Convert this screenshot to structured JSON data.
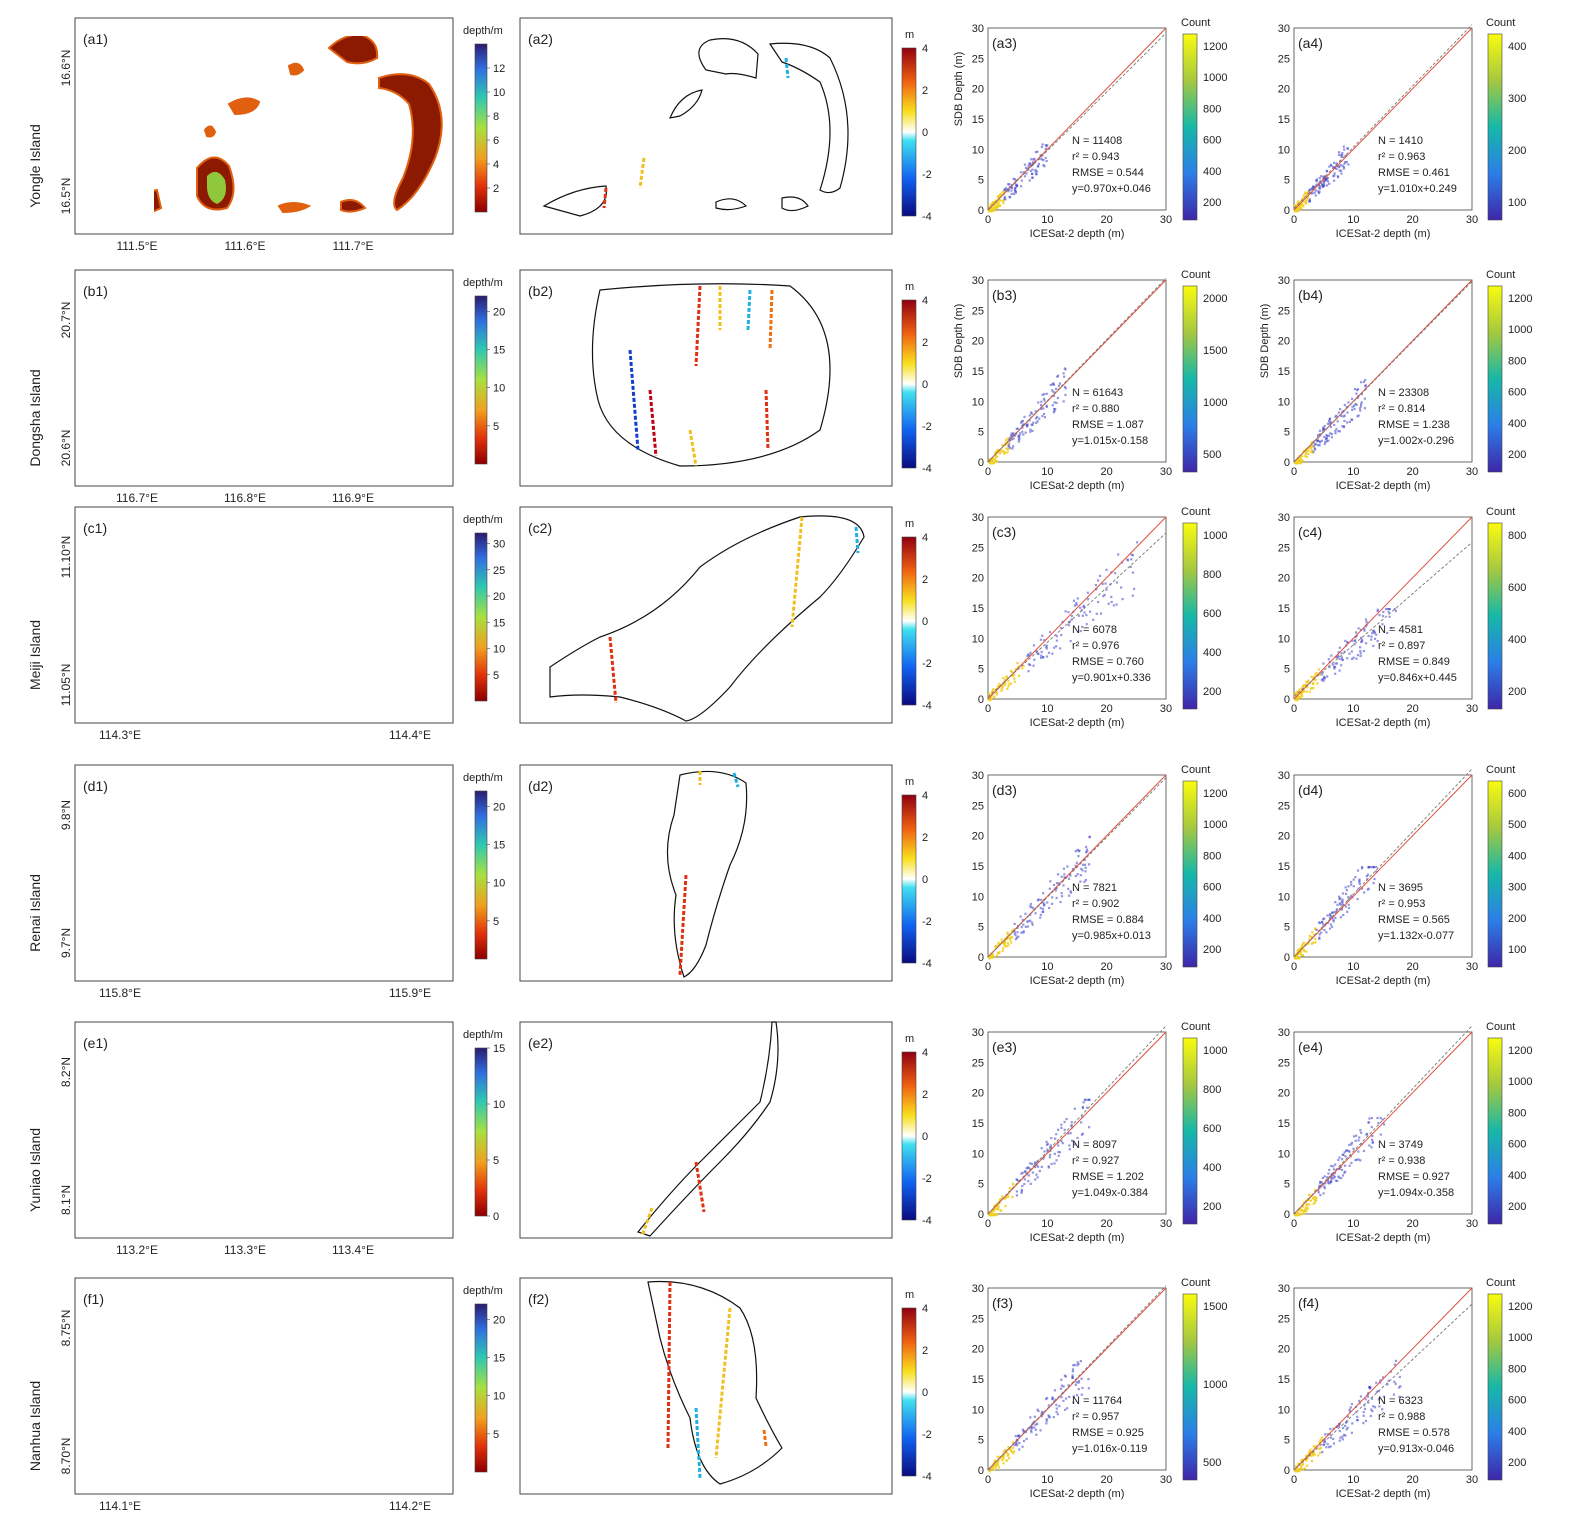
{
  "colors": {
    "bg": "#ffffff",
    "axis": "#444444",
    "outline": "#111111",
    "one_to_one": "#e05040",
    "fit_line": "#777777",
    "point_dense": "#f0d020",
    "point_sparse": "#3a40c8",
    "land_shallow": "#8b1a00",
    "land_mid": "#e06010",
    "lagoon": "#8fd840"
  },
  "labels": {
    "depth_cbar": "depth/m",
    "diff_cbar": "m",
    "count_cbar": "Count",
    "x_axis": "ICESat-2 depth (m)",
    "y_axis": "SDB Depth (m)",
    "diff_ticks": [
      "4",
      "2",
      "0",
      "-2",
      "-4"
    ],
    "scatter_ticks": [
      "0",
      "5",
      "10",
      "15",
      "20",
      "25",
      "30"
    ],
    "scatter_xticks": [
      "0",
      "10",
      "20",
      "30"
    ]
  },
  "rows": [
    {
      "island": "Yongle Island",
      "panels": [
        "(a1)",
        "(a2)",
        "(a3)",
        "(a4)"
      ],
      "lat_ticks": [
        "16.6°N",
        "16.5°N"
      ],
      "lon_ticks": [
        "111.5°E",
        "111.6°E",
        "111.7°E"
      ],
      "depth_ticks": [
        "12",
        "10",
        "8",
        "6",
        "4",
        "2"
      ],
      "depth_max": 14,
      "count3_ticks": [
        "1200",
        "1000",
        "800",
        "600",
        "400",
        "200"
      ],
      "count4_ticks": [
        "400",
        "300",
        "200",
        "100"
      ],
      "ylabel3": "SDB Depth (m)",
      "ylabel4": "",
      "stats3": [
        "N = 11408",
        "r² = 0.943",
        "RMSE = 0.544",
        "y=0.970x+0.046"
      ],
      "stats4": [
        "N = 1410",
        "r² = 0.963",
        "RMSE = 0.461",
        "y=1.010x+0.249"
      ]
    },
    {
      "island": "Dongsha Island",
      "panels": [
        "(b1)",
        "(b2)",
        "(b3)",
        "(b4)"
      ],
      "lat_ticks": [
        "20.7°N",
        "20.6°N"
      ],
      "lon_ticks": [
        "116.7°E",
        "116.8°E",
        "116.9°E"
      ],
      "depth_ticks": [
        "20",
        "15",
        "10",
        "5"
      ],
      "depth_max": 22,
      "count3_ticks": [
        "2000",
        "1500",
        "1000",
        "500"
      ],
      "count4_ticks": [
        "1200",
        "1000",
        "800",
        "600",
        "400",
        "200"
      ],
      "ylabel3": "SDB Depth (m)",
      "ylabel4": "SDB Depth (m)",
      "stats3": [
        "N = 61643",
        "r² = 0.880",
        "RMSE = 1.087",
        "y=1.015x-0.158"
      ],
      "stats4": [
        "N = 23308",
        "r² = 0.814",
        "RMSE = 1.238",
        "y=1.002x-0.296"
      ]
    },
    {
      "island": "Meiji Island",
      "panels": [
        "(c1)",
        "(c2)",
        "(c3)",
        "(c4)"
      ],
      "lat_ticks": [
        "11.10°N",
        "11.05°N"
      ],
      "lon_ticks": [
        "114.3°E",
        "114.4°E"
      ],
      "depth_ticks": [
        "30",
        "25",
        "20",
        "15",
        "10",
        "5"
      ],
      "depth_max": 32,
      "count3_ticks": [
        "1000",
        "800",
        "600",
        "400",
        "200"
      ],
      "count4_ticks": [
        "800",
        "600",
        "400",
        "200"
      ],
      "ylabel3": "",
      "ylabel4": "",
      "stats3": [
        "N = 6078",
        "r² = 0.976",
        "RMSE = 0.760",
        "y=0.901x+0.336"
      ],
      "stats4": [
        "N = 4581",
        "r² = 0.897",
        "RMSE = 0.849",
        "y=0.846x+0.445"
      ]
    },
    {
      "island": "Renai Island",
      "panels": [
        "(d1)",
        "(d2)",
        "(d3)",
        "(d4)"
      ],
      "lat_ticks": [
        "9.8°N",
        "9.7°N"
      ],
      "lon_ticks": [
        "115.8°E",
        "115.9°E"
      ],
      "depth_ticks": [
        "20",
        "15",
        "10",
        "5"
      ],
      "depth_max": 22,
      "count3_ticks": [
        "1200",
        "1000",
        "800",
        "600",
        "400",
        "200"
      ],
      "count4_ticks": [
        "600",
        "500",
        "400",
        "300",
        "200",
        "100"
      ],
      "ylabel3": "",
      "ylabel4": "",
      "stats3": [
        "N = 7821",
        "r² = 0.902",
        "RMSE = 0.884",
        "y=0.985x+0.013"
      ],
      "stats4": [
        "N = 3695",
        "r² = 0.953",
        "RMSE = 0.565",
        "y=1.132x-0.077"
      ]
    },
    {
      "island": "Yuniao Island",
      "panels": [
        "(e1)",
        "(e2)",
        "(e3)",
        "(e4)"
      ],
      "lat_ticks": [
        "8.2°N",
        "8.1°N"
      ],
      "lon_ticks": [
        "113.2°E",
        "113.3°E",
        "113.4°E"
      ],
      "depth_ticks": [
        "15",
        "10",
        "5",
        "0"
      ],
      "depth_max": 15,
      "count3_ticks": [
        "1000",
        "800",
        "600",
        "400",
        "200"
      ],
      "count4_ticks": [
        "1200",
        "1000",
        "800",
        "600",
        "400",
        "200"
      ],
      "ylabel3": "",
      "ylabel4": "",
      "stats3": [
        "N = 8097",
        "r² = 0.927",
        "RMSE = 1.202",
        "y=1.049x-0.384"
      ],
      "stats4": [
        "N = 3749",
        "r² = 0.938",
        "RMSE = 0.927",
        "y=1.094x-0.358"
      ]
    },
    {
      "island": "Nanhua Island",
      "panels": [
        "(f1)",
        "(f2)",
        "(f3)",
        "(f4)"
      ],
      "lat_ticks": [
        "8.75°N",
        "8.70°N"
      ],
      "lon_ticks": [
        "114.1°E",
        "114.2°E"
      ],
      "depth_ticks": [
        "20",
        "15",
        "10",
        "5"
      ],
      "depth_max": 22,
      "count3_ticks": [
        "1500",
        "1000",
        "500"
      ],
      "count4_ticks": [
        "1200",
        "1000",
        "800",
        "600",
        "400",
        "200"
      ],
      "ylabel3": "",
      "ylabel4": "",
      "stats3": [
        "N = 11764",
        "r² = 0.957",
        "RMSE = 0.925",
        "y=1.016x-0.119"
      ],
      "stats4": [
        "N = 6323",
        "r² = 0.988",
        "RMSE = 0.578",
        "y=0.913x-0.046"
      ]
    }
  ],
  "chart_data": [
    {
      "type": "scatter",
      "panel": "(a3)",
      "title": "",
      "xlabel": "ICESat-2 depth (m)",
      "ylabel": "SDB Depth (m)",
      "xlim": [
        0,
        30
      ],
      "ylim": [
        0,
        30
      ],
      "fit": {
        "slope": 0.97,
        "intercept": 0.046
      },
      "cloud_extent": {
        "x": [
          0,
          10
        ],
        "y": [
          0,
          13
        ]
      }
    },
    {
      "type": "scatter",
      "panel": "(a4)",
      "title": "",
      "xlabel": "ICESat-2 depth (m)",
      "ylabel": "",
      "xlim": [
        0,
        30
      ],
      "ylim": [
        0,
        30
      ],
      "fit": {
        "slope": 1.01,
        "intercept": 0.249
      },
      "cloud_extent": {
        "x": [
          0,
          9
        ],
        "y": [
          0,
          12
        ]
      }
    },
    {
      "type": "scatter",
      "panel": "(b3)",
      "title": "",
      "xlabel": "ICESat-2 depth (m)",
      "ylabel": "SDB Depth (m)",
      "xlim": [
        0,
        30
      ],
      "ylim": [
        0,
        30
      ],
      "fit": {
        "slope": 1.015,
        "intercept": -0.158
      },
      "cloud_extent": {
        "x": [
          0,
          13
        ],
        "y": [
          0,
          16
        ]
      }
    },
    {
      "type": "scatter",
      "panel": "(b4)",
      "title": "",
      "xlabel": "ICESat-2 depth (m)",
      "ylabel": "SDB Depth (m)",
      "xlim": [
        0,
        30
      ],
      "ylim": [
        0,
        30
      ],
      "fit": {
        "slope": 1.002,
        "intercept": -0.296
      },
      "cloud_extent": {
        "x": [
          0,
          12
        ],
        "y": [
          0,
          14
        ]
      }
    },
    {
      "type": "scatter",
      "panel": "(c3)",
      "title": "",
      "xlabel": "ICESat-2 depth (m)",
      "ylabel": "",
      "xlim": [
        0,
        30
      ],
      "ylim": [
        0,
        30
      ],
      "fit": {
        "slope": 0.901,
        "intercept": 0.336
      },
      "cloud_extent": {
        "x": [
          0,
          25
        ],
        "y": [
          0,
          28
        ]
      }
    },
    {
      "type": "scatter",
      "panel": "(c4)",
      "title": "",
      "xlabel": "ICESat-2 depth (m)",
      "ylabel": "",
      "xlim": [
        0,
        30
      ],
      "ylim": [
        0,
        30
      ],
      "fit": {
        "slope": 0.846,
        "intercept": 0.445
      },
      "cloud_extent": {
        "x": [
          0,
          17
        ],
        "y": [
          0,
          15
        ]
      }
    },
    {
      "type": "scatter",
      "panel": "(d3)",
      "title": "",
      "xlabel": "ICESat-2 depth (m)",
      "ylabel": "",
      "xlim": [
        0,
        30
      ],
      "ylim": [
        0,
        30
      ],
      "fit": {
        "slope": 0.985,
        "intercept": 0.013
      },
      "cloud_extent": {
        "x": [
          0,
          17
        ],
        "y": [
          0,
          20
        ]
      }
    },
    {
      "type": "scatter",
      "panel": "(d4)",
      "title": "",
      "xlabel": "ICESat-2 depth (m)",
      "ylabel": "",
      "xlim": [
        0,
        30
      ],
      "ylim": [
        0,
        30
      ],
      "fit": {
        "slope": 1.132,
        "intercept": -0.077
      },
      "cloud_extent": {
        "x": [
          0,
          14
        ],
        "y": [
          0,
          15
        ]
      }
    },
    {
      "type": "scatter",
      "panel": "(e3)",
      "title": "",
      "xlabel": "ICESat-2 depth (m)",
      "ylabel": "",
      "xlim": [
        0,
        30
      ],
      "ylim": [
        0,
        30
      ],
      "fit": {
        "slope": 1.049,
        "intercept": -0.384
      },
      "cloud_extent": {
        "x": [
          0,
          17
        ],
        "y": [
          0,
          19
        ]
      }
    },
    {
      "type": "scatter",
      "panel": "(e4)",
      "title": "",
      "xlabel": "ICESat-2 depth (m)",
      "ylabel": "",
      "xlim": [
        0,
        30
      ],
      "ylim": [
        0,
        30
      ],
      "fit": {
        "slope": 1.094,
        "intercept": -0.358
      },
      "cloud_extent": {
        "x": [
          0,
          15
        ],
        "y": [
          0,
          16
        ]
      }
    },
    {
      "type": "scatter",
      "panel": "(f3)",
      "title": "",
      "xlabel": "ICESat-2 depth (m)",
      "ylabel": "",
      "xlim": [
        0,
        30
      ],
      "ylim": [
        0,
        30
      ],
      "fit": {
        "slope": 1.016,
        "intercept": -0.119
      },
      "cloud_extent": {
        "x": [
          0,
          17
        ],
        "y": [
          0,
          20
        ]
      }
    },
    {
      "type": "scatter",
      "panel": "(f4)",
      "title": "",
      "xlabel": "ICESat-2 depth (m)",
      "ylabel": "",
      "xlim": [
        0,
        30
      ],
      "ylim": [
        0,
        30
      ],
      "fit": {
        "slope": 0.913,
        "intercept": -0.046
      },
      "cloud_extent": {
        "x": [
          0,
          18
        ],
        "y": [
          0,
          21
        ]
      }
    }
  ]
}
